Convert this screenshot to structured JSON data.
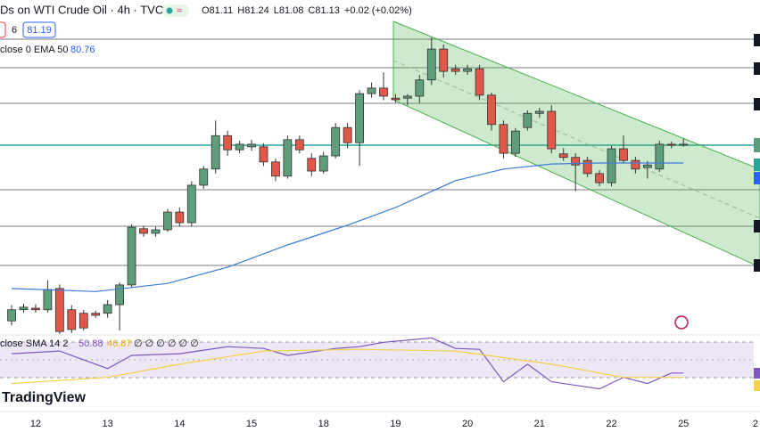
{
  "chart_data": [
    {
      "type": "candlestick",
      "title": "Ds on WTI Crude Oil · 4h · TVC",
      "ohlc_legend": [
        "O81.11",
        "H81.24",
        "L81.08",
        "C81.13",
        "+0.02 (+0.02%)"
      ],
      "price_boxes": [
        "6",
        "81.19"
      ],
      "up_color": "#5e9e7a",
      "down_color": "#e0584a",
      "xlim": [
        -0.97,
        62.38
      ],
      "ylim": [
        77.38,
        83.98
      ],
      "xticks": [
        {
          "value": 2,
          "label": "12"
        },
        {
          "value": 8,
          "label": "13"
        },
        {
          "value": 14,
          "label": "14"
        },
        {
          "value": 20,
          "label": "15"
        },
        {
          "value": 26,
          "label": "18"
        },
        {
          "value": 32,
          "label": "19"
        },
        {
          "value": 38,
          "label": "20"
        },
        {
          "value": 44,
          "label": "21"
        },
        {
          "value": 50,
          "label": "22"
        },
        {
          "value": 56,
          "label": "25"
        },
        {
          "value": 62,
          "label": "2"
        }
      ],
      "open": [
        77.64,
        77.86,
        77.89,
        77.86,
        78.28,
        77.86,
        77.79,
        77.79,
        77.79,
        77.96,
        78.35,
        79.46,
        79.37,
        79.44,
        79.79,
        79.58,
        80.32,
        80.64,
        81.3,
        81.02,
        81.08,
        81.08,
        80.78,
        80.5,
        81.22,
        80.85,
        80.6,
        80.9,
        81.46,
        81.16,
        82.13,
        82.24,
        82.04,
        82.04,
        82.08,
        82.4,
        83.01,
        82.62,
        82.57,
        82.62,
        82.1,
        81.52,
        80.95,
        81.46,
        81.74,
        81.78,
        80.94,
        80.87,
        80.81,
        80.55,
        80.37,
        81.04,
        80.81,
        80.67,
        80.64,
        81.13,
        81.11
      ],
      "high": [
        77.95,
        77.98,
        77.97,
        78.44,
        78.36,
        77.95,
        77.86,
        77.84,
        78.05,
        78.4,
        79.55,
        79.52,
        79.5,
        79.85,
        79.88,
        80.4,
        80.7,
        81.6,
        81.4,
        81.2,
        81.22,
        81.15,
        80.85,
        81.3,
        81.3,
        80.95,
        80.98,
        81.55,
        81.55,
        82.2,
        82.35,
        82.55,
        82.12,
        82.12,
        82.5,
        83.24,
        83.1,
        82.7,
        82.7,
        82.7,
        82.15,
        81.6,
        81.45,
        81.8,
        81.85,
        81.9,
        81.05,
        80.95,
        80.88,
        80.62,
        81.1,
        81.3,
        80.88,
        80.8,
        81.2,
        81.18,
        81.24
      ],
      "low": [
        77.55,
        77.8,
        77.8,
        77.8,
        77.38,
        77.4,
        77.45,
        77.7,
        77.7,
        77.45,
        78.3,
        79.3,
        79.3,
        79.4,
        79.5,
        79.5,
        80.25,
        80.55,
        80.9,
        80.95,
        81.0,
        80.7,
        80.4,
        80.45,
        80.95,
        80.5,
        80.55,
        80.85,
        81.05,
        80.7,
        82.05,
        82.0,
        81.95,
        81.9,
        81.95,
        82.3,
        82.45,
        82.5,
        82.5,
        82.0,
        81.4,
        80.85,
        80.88,
        81.4,
        81.65,
        80.95,
        80.8,
        80.2,
        80.48,
        80.3,
        80.3,
        80.75,
        80.55,
        80.45,
        80.58,
        81.05,
        81.08
      ],
      "close": [
        77.86,
        77.91,
        77.86,
        78.26,
        77.43,
        77.47,
        77.5,
        77.75,
        77.96,
        78.35,
        79.49,
        79.37,
        79.44,
        79.79,
        79.58,
        80.32,
        80.64,
        81.3,
        81.02,
        81.13,
        81.13,
        80.78,
        80.5,
        81.22,
        81.02,
        80.6,
        80.9,
        81.46,
        81.16,
        82.13,
        82.24,
        82.08,
        82.01,
        82.08,
        82.4,
        83.01,
        82.57,
        82.57,
        82.62,
        82.1,
        81.52,
        80.95,
        81.39,
        81.74,
        81.78,
        81.04,
        80.87,
        80.72,
        80.55,
        80.37,
        81.04,
        80.81,
        80.64,
        80.72,
        81.13,
        81.11,
        81.13
      ],
      "ema": {
        "name": "close 0 EMA 50",
        "color": "#3d7bd9",
        "x": [
          0,
          7,
          13,
          18,
          23,
          28,
          32,
          37,
          41,
          45,
          49,
          53,
          56
        ],
        "values": [
          78.28,
          78.22,
          78.38,
          78.7,
          79.14,
          79.53,
          79.88,
          80.41,
          80.64,
          80.74,
          80.76,
          80.76,
          80.76
        ]
      }
    },
    {
      "type": "line",
      "legend": "close SMA 14 2",
      "extra_legend": "∅ ∅ ∅ ∅ ∅ ∅",
      "xlim": [
        -0.97,
        62.38
      ],
      "ylim": [
        32,
        84
      ],
      "series": [
        {
          "color": "#7e57c2",
          "x": [
            0,
            4,
            8,
            10,
            14,
            18,
            21,
            23,
            27,
            29,
            31,
            35,
            37,
            39,
            41,
            43,
            45,
            49,
            51,
            53,
            55,
            56
          ],
          "values": [
            68.5,
            70.9,
            54.9,
            66.9,
            68.5,
            74.9,
            73.3,
            66.9,
            73.3,
            74.9,
            78.9,
            82.9,
            73.3,
            72.5,
            42.9,
            58.9,
            42.9,
            36.5,
            46.9,
            41.3,
            50.88,
            50.88
          ]
        },
        {
          "color": "#f2d24b",
          "x": [
            0,
            8,
            14,
            21,
            29,
            37,
            45,
            51,
            56
          ],
          "values": [
            41.3,
            46.9,
            58.9,
            70.9,
            72.5,
            70.9,
            58.9,
            46.9,
            46.87
          ]
        }
      ]
    }
  ]
}
